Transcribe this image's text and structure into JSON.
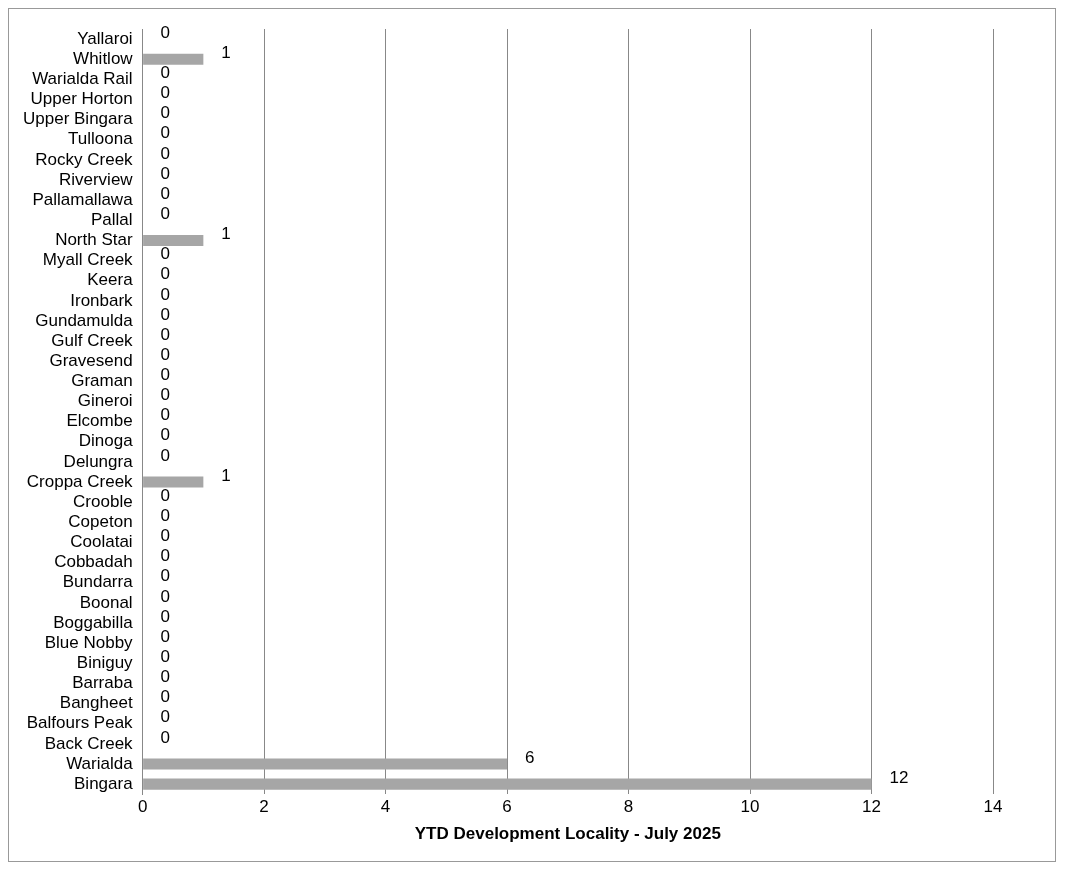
{
  "chart_data": {
    "type": "bar",
    "orientation": "horizontal",
    "xlabel": "YTD Development Locality - July 2025",
    "categories": [
      "Yallaroi",
      "Whitlow",
      "Warialda Rail",
      "Upper Horton",
      "Upper Bingara",
      "Tulloona",
      "Rocky Creek",
      "Riverview",
      "Pallamallawa",
      "Pallal",
      "North Star",
      "Myall Creek",
      "Keera",
      "Ironbark",
      "Gundamulda",
      "Gulf Creek",
      "Gravesend",
      "Graman",
      "Gineroi",
      "Elcombe",
      "Dinoga",
      "Delungra",
      "Croppa Creek",
      "Crooble",
      "Copeton",
      "Coolatai",
      "Cobbadah",
      "Bundarra",
      "Boonal",
      "Boggabilla",
      "Blue Nobby",
      "Biniguy",
      "Barraba",
      "Bangheet",
      "Balfours Peak",
      "Back Creek",
      "Warialda",
      "Bingara"
    ],
    "values": [
      0,
      1,
      0,
      0,
      0,
      0,
      0,
      0,
      0,
      0,
      1,
      0,
      0,
      0,
      0,
      0,
      0,
      0,
      0,
      0,
      0,
      0,
      1,
      0,
      0,
      0,
      0,
      0,
      0,
      0,
      0,
      0,
      0,
      0,
      0,
      0,
      6,
      12
    ],
    "color": "#a6a6a6",
    "xlim": [
      0,
      14
    ],
    "xticks": [
      0,
      2,
      4,
      6,
      8,
      10,
      12,
      14
    ],
    "grid": "x",
    "legend": false,
    "data_labels": true
  }
}
